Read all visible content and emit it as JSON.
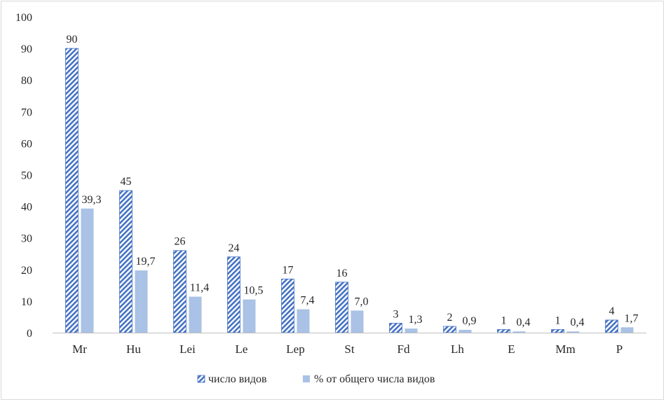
{
  "chart_data": {
    "type": "bar",
    "categories": [
      "Mr",
      "Hu",
      "Lei",
      "Le",
      "Lep",
      "St",
      "Fd",
      "Lh",
      "E",
      "Mm",
      "P"
    ],
    "series": [
      {
        "name": "число видов",
        "values": [
          90,
          45,
          26,
          24,
          17,
          16,
          3,
          2,
          1,
          1,
          4
        ],
        "labels": [
          "90",
          "45",
          "26",
          "24",
          "17",
          "16",
          "3",
          "2",
          "1",
          "1",
          "4"
        ],
        "color": "#4472c4",
        "pattern": "diagonal-hatch"
      },
      {
        "name": "% от общего числа видов",
        "values": [
          39.3,
          19.7,
          11.4,
          10.5,
          7.4,
          7.0,
          1.3,
          0.9,
          0.4,
          0.4,
          1.7
        ],
        "labels": [
          "39,3",
          "19,7",
          "11,4",
          "10,5",
          "7,4",
          "7,0",
          "1,3",
          "0,9",
          "0,4",
          "0,4",
          "1,7"
        ],
        "color": "#a9c2e5",
        "pattern": "solid"
      }
    ],
    "ylim": [
      0,
      100
    ],
    "yticks": [
      "0",
      "10",
      "20",
      "30",
      "40",
      "50",
      "60",
      "70",
      "80",
      "90",
      "100"
    ],
    "grid": false,
    "legend": "bottom"
  }
}
